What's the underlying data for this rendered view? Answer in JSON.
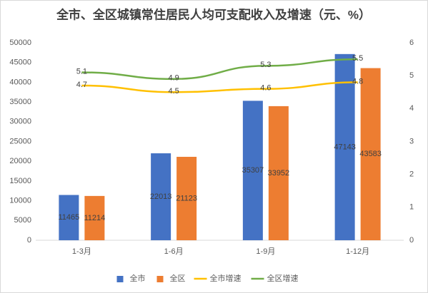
{
  "chart_data": {
    "type": "bar",
    "title": "全市、全区城镇常住居民人均可支配收入及增速（元、%）",
    "categories": [
      "1-3月",
      "1-6月",
      "1-9月",
      "1-12月"
    ],
    "series": [
      {
        "name": "全市",
        "color": "#4472c4",
        "values": [
          11465,
          22013,
          35307,
          47143
        ]
      },
      {
        "name": "全区",
        "color": "#ed7d31",
        "values": [
          11214,
          21123,
          33952,
          43583
        ]
      },
      {
        "name": "全市增速",
        "color": "#ffc000",
        "type": "line",
        "axis": "y2",
        "values": [
          4.7,
          4.5,
          4.6,
          4.8
        ]
      },
      {
        "name": "全区增速",
        "color": "#70ad47",
        "type": "line",
        "axis": "y2",
        "values": [
          5.1,
          4.9,
          5.3,
          5.5
        ]
      }
    ],
    "ylim": [
      0,
      50000
    ],
    "yticks": [
      0,
      5000,
      10000,
      15000,
      20000,
      25000,
      30000,
      35000,
      40000,
      45000,
      50000
    ],
    "y2lim": [
      0,
      6
    ],
    "y2ticks": [
      0,
      1,
      2,
      3,
      4,
      5,
      6
    ],
    "legend": "bottom"
  }
}
